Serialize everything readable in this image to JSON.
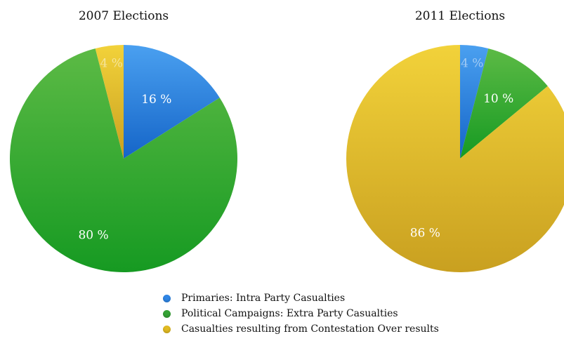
{
  "chart_data": [
    {
      "type": "pie",
      "title": "2007 Elections",
      "categories": [
        "Primaries: Intra Party Casualties",
        "Political Campaigns: Extra Party Casualties",
        "Casualties resulting from Contestation Over results"
      ],
      "values": [
        16,
        80,
        4
      ],
      "slice_labels": [
        "16 %",
        "80 %",
        "4 %"
      ]
    },
    {
      "type": "pie",
      "title": "2011 Elections",
      "categories": [
        "Primaries: Intra Party Casualties",
        "Political Campaigns: Extra Party Casualties",
        "Casualties resulting from Contestation Over results"
      ],
      "values": [
        4,
        10,
        86
      ],
      "slice_labels": [
        "4 %",
        "10 %",
        "86 %"
      ]
    }
  ],
  "legend": [
    {
      "label": "Primaries: Intra Party Casualties",
      "color": "#2f86e6"
    },
    {
      "label": "Political Campaigns: Extra Party Casualties",
      "color": "#35a335"
    },
    {
      "label": "Casualties resulting from Contestation Over results",
      "color": "#e2bb22"
    }
  ],
  "colors": {
    "blue": [
      "#4aa0f0",
      "#1565c8"
    ],
    "green": [
      "#5cba45",
      "#169a22"
    ],
    "yellow": [
      "#f2d23a",
      "#c9a020"
    ]
  }
}
